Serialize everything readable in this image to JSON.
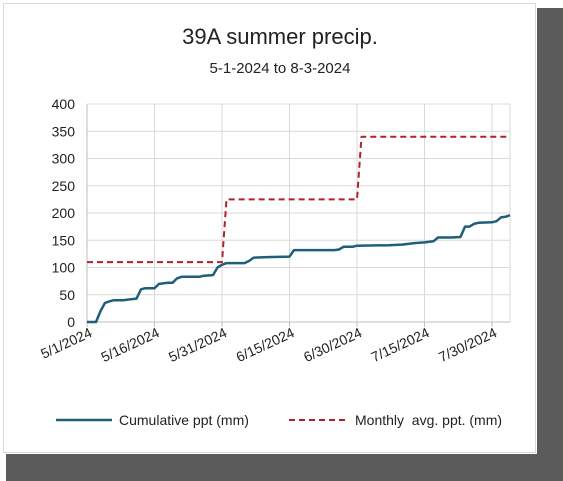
{
  "chart_data": {
    "type": "line",
    "title": "39A summer precip.",
    "subtitle": "5-1-2024 to 8-3-2024",
    "xlabel": "",
    "ylabel": "",
    "ylim": [
      0,
      400
    ],
    "yticks": [
      "0",
      "50",
      "100",
      "150",
      "200",
      "250",
      "300",
      "350",
      "400"
    ],
    "xlim": [
      "2024-05-01",
      "2024-08-03"
    ],
    "xticks": [
      {
        "date": "2024-05-01",
        "label": "5/1/2024"
      },
      {
        "date": "2024-05-16",
        "label": "5/16/2024"
      },
      {
        "date": "2024-05-31",
        "label": "5/31/2024"
      },
      {
        "date": "2024-06-15",
        "label": "6/15/2024"
      },
      {
        "date": "2024-06-30",
        "label": "6/30/2024"
      },
      {
        "date": "2024-07-15",
        "label": "7/15/2024"
      },
      {
        "date": "2024-07-30",
        "label": "7/30/2024"
      }
    ],
    "grid": "vertical and horizontal",
    "legend_position": "bottom",
    "series": [
      {
        "name": "Cumulative ppt (mm)",
        "style": "solid",
        "color": "#1f5f7a",
        "points": [
          [
            "2024-05-01",
            0
          ],
          [
            "2024-05-02",
            0
          ],
          [
            "2024-05-03",
            0
          ],
          [
            "2024-05-04",
            20
          ],
          [
            "2024-05-05",
            35
          ],
          [
            "2024-05-06",
            38
          ],
          [
            "2024-05-07",
            40
          ],
          [
            "2024-05-09",
            40
          ],
          [
            "2024-05-11",
            42
          ],
          [
            "2024-05-12",
            43
          ],
          [
            "2024-05-13",
            60
          ],
          [
            "2024-05-14",
            62
          ],
          [
            "2024-05-16",
            62
          ],
          [
            "2024-05-17",
            70
          ],
          [
            "2024-05-19",
            72
          ],
          [
            "2024-05-20",
            72
          ],
          [
            "2024-05-21",
            80
          ],
          [
            "2024-05-22",
            83
          ],
          [
            "2024-05-26",
            83
          ],
          [
            "2024-05-27",
            85
          ],
          [
            "2024-05-29",
            86
          ],
          [
            "2024-05-30",
            100
          ],
          [
            "2024-05-31",
            105
          ],
          [
            "2024-06-01",
            108
          ],
          [
            "2024-06-05",
            108
          ],
          [
            "2024-06-06",
            112
          ],
          [
            "2024-06-07",
            118
          ],
          [
            "2024-06-10",
            119
          ],
          [
            "2024-06-15",
            120
          ],
          [
            "2024-06-16",
            132
          ],
          [
            "2024-06-25",
            132
          ],
          [
            "2024-06-26",
            133
          ],
          [
            "2024-06-27",
            138
          ],
          [
            "2024-06-29",
            138
          ],
          [
            "2024-06-30",
            140
          ],
          [
            "2024-07-07",
            141
          ],
          [
            "2024-07-10",
            142
          ],
          [
            "2024-07-13",
            145
          ],
          [
            "2024-07-15",
            146
          ],
          [
            "2024-07-17",
            148
          ],
          [
            "2024-07-18",
            155
          ],
          [
            "2024-07-21",
            155
          ],
          [
            "2024-07-23",
            156
          ],
          [
            "2024-07-24",
            175
          ],
          [
            "2024-07-25",
            175
          ],
          [
            "2024-07-26",
            180
          ],
          [
            "2024-07-27",
            182
          ],
          [
            "2024-07-30",
            183
          ],
          [
            "2024-07-31",
            185
          ],
          [
            "2024-08-01",
            192
          ],
          [
            "2024-08-02",
            193
          ],
          [
            "2024-08-03",
            196
          ]
        ]
      },
      {
        "name": "Monthly  avg. ppt. (mm)",
        "style": "dashed",
        "color": "#b2222a",
        "points": [
          [
            "2024-05-01",
            110
          ],
          [
            "2024-05-31",
            110
          ],
          [
            "2024-06-01",
            225
          ],
          [
            "2024-06-30",
            225
          ],
          [
            "2024-07-01",
            340
          ],
          [
            "2024-08-03",
            340
          ]
        ]
      }
    ]
  }
}
